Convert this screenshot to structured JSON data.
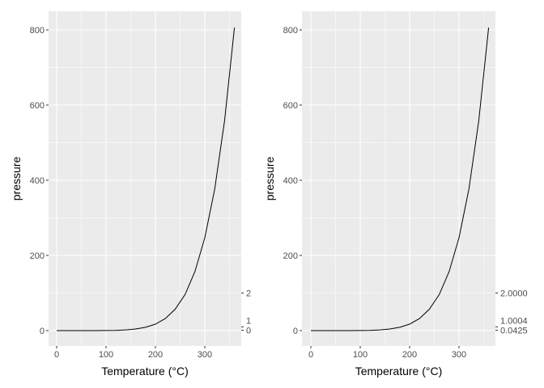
{
  "chart_data": [
    {
      "type": "line",
      "xlabel": "Temperature (°C)",
      "ylabel": "pressure",
      "xlim": [
        0,
        360
      ],
      "ylim": [
        0,
        806
      ],
      "x_ticks": [
        0,
        100,
        200,
        300
      ],
      "y_ticks": [
        0,
        200,
        400,
        600,
        800
      ],
      "secondary_y_ticks": [
        "0",
        "1",
        "2"
      ],
      "secondary_y_values": [
        0,
        1,
        2
      ],
      "secondary_y_transform": "log10(pressure)",
      "grid": true,
      "background": "#EBEBEB",
      "line_color": "#000000",
      "x": [
        0,
        20,
        40,
        60,
        80,
        100,
        120,
        140,
        160,
        180,
        200,
        220,
        240,
        260,
        280,
        300,
        320,
        340,
        360
      ],
      "y": [
        0.0002,
        0.0012,
        0.006,
        0.03,
        0.09,
        0.27,
        0.75,
        1.85,
        4.2,
        8.8,
        17.3,
        32.1,
        57,
        96,
        157,
        247,
        376,
        558,
        806
      ]
    },
    {
      "type": "line",
      "xlabel": "Temperature (°C)",
      "ylabel": "pressure",
      "xlim": [
        0,
        360
      ],
      "ylim": [
        0,
        806
      ],
      "x_ticks": [
        0,
        100,
        200,
        300
      ],
      "y_ticks": [
        0,
        200,
        400,
        600,
        800
      ],
      "secondary_y_ticks": [
        "0.0425",
        "1.0004",
        "2.0000"
      ],
      "secondary_y_values": [
        0.0425,
        1.0004,
        2.0
      ],
      "secondary_y_transform": "log10(pressure)",
      "grid": true,
      "background": "#EBEBEB",
      "line_color": "#000000",
      "x": [
        0,
        20,
        40,
        60,
        80,
        100,
        120,
        140,
        160,
        180,
        200,
        220,
        240,
        260,
        280,
        300,
        320,
        340,
        360
      ],
      "y": [
        0.0002,
        0.0012,
        0.006,
        0.03,
        0.09,
        0.27,
        0.75,
        1.85,
        4.2,
        8.8,
        17.3,
        32.1,
        57,
        96,
        157,
        247,
        376,
        558,
        806
      ]
    }
  ]
}
